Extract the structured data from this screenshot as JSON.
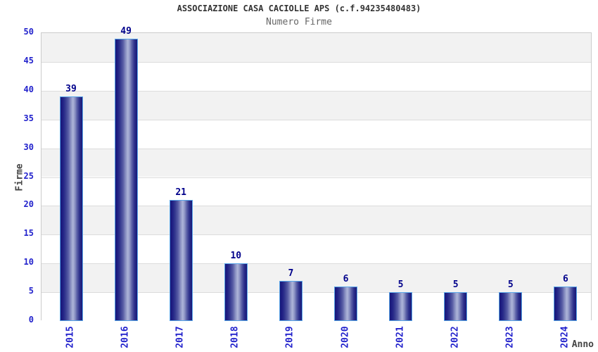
{
  "chart_data": {
    "type": "bar",
    "title": "ASSOCIAZIONE CASA CACIOLLE APS (c.f.94235480483)",
    "subtitle": "Numero Firme",
    "xlabel": "Anno",
    "ylabel": "Firme",
    "categories": [
      "2015",
      "2016",
      "2017",
      "2018",
      "2019",
      "2020",
      "2021",
      "2022",
      "2023",
      "2024"
    ],
    "values": [
      39,
      49,
      21,
      10,
      7,
      6,
      5,
      5,
      5,
      6
    ],
    "ylim": [
      0,
      50
    ],
    "yticks": [
      0,
      5,
      10,
      15,
      20,
      25,
      30,
      35,
      40,
      45,
      50
    ],
    "grid": "alternating horizontal bands with gridlines every 5 units",
    "legend": "none",
    "colors": {
      "bar_dark": "#181878",
      "bar_light": "#aeb5d9",
      "bar_border": "#58a5e8",
      "tick_label": "#2222cc",
      "value_label": "#00008b",
      "band_gray": "#f2f2f2",
      "band_white": "#ffffff",
      "gridline": "#dcdcdc",
      "plot_border": "#cccccc",
      "title_color": "#333333",
      "subtitle_color": "#666666",
      "axis_title_color": "#444444"
    }
  }
}
